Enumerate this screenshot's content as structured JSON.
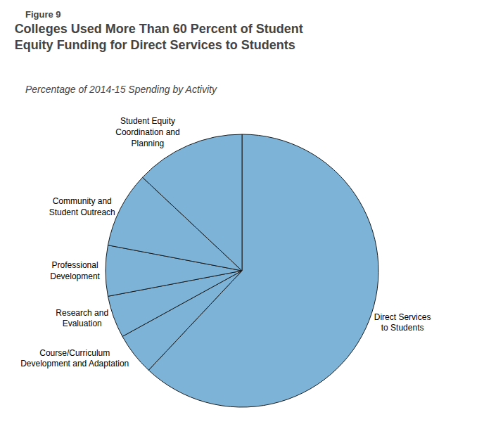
{
  "chart_data": {
    "type": "pie",
    "title": "Colleges Used More Than 60 Percent of Student\nEquity Funding for Direct Services to Students",
    "subtitle": "Percentage of 2014-15 Spending by Activity",
    "annotations": [
      "Figure 9"
    ],
    "categories": [
      "Direct Services\nto Students",
      "Course/Curriculum\nDevelopment and Adaptation",
      "Research and\nEvaluation",
      "Professional\nDevelopment",
      "Community and\nStudent Outreach",
      "Student Equity\nCoordination and\nPlanning"
    ],
    "values": [
      62,
      5,
      5,
      6,
      9,
      13
    ],
    "color": "#7EB3D8"
  }
}
